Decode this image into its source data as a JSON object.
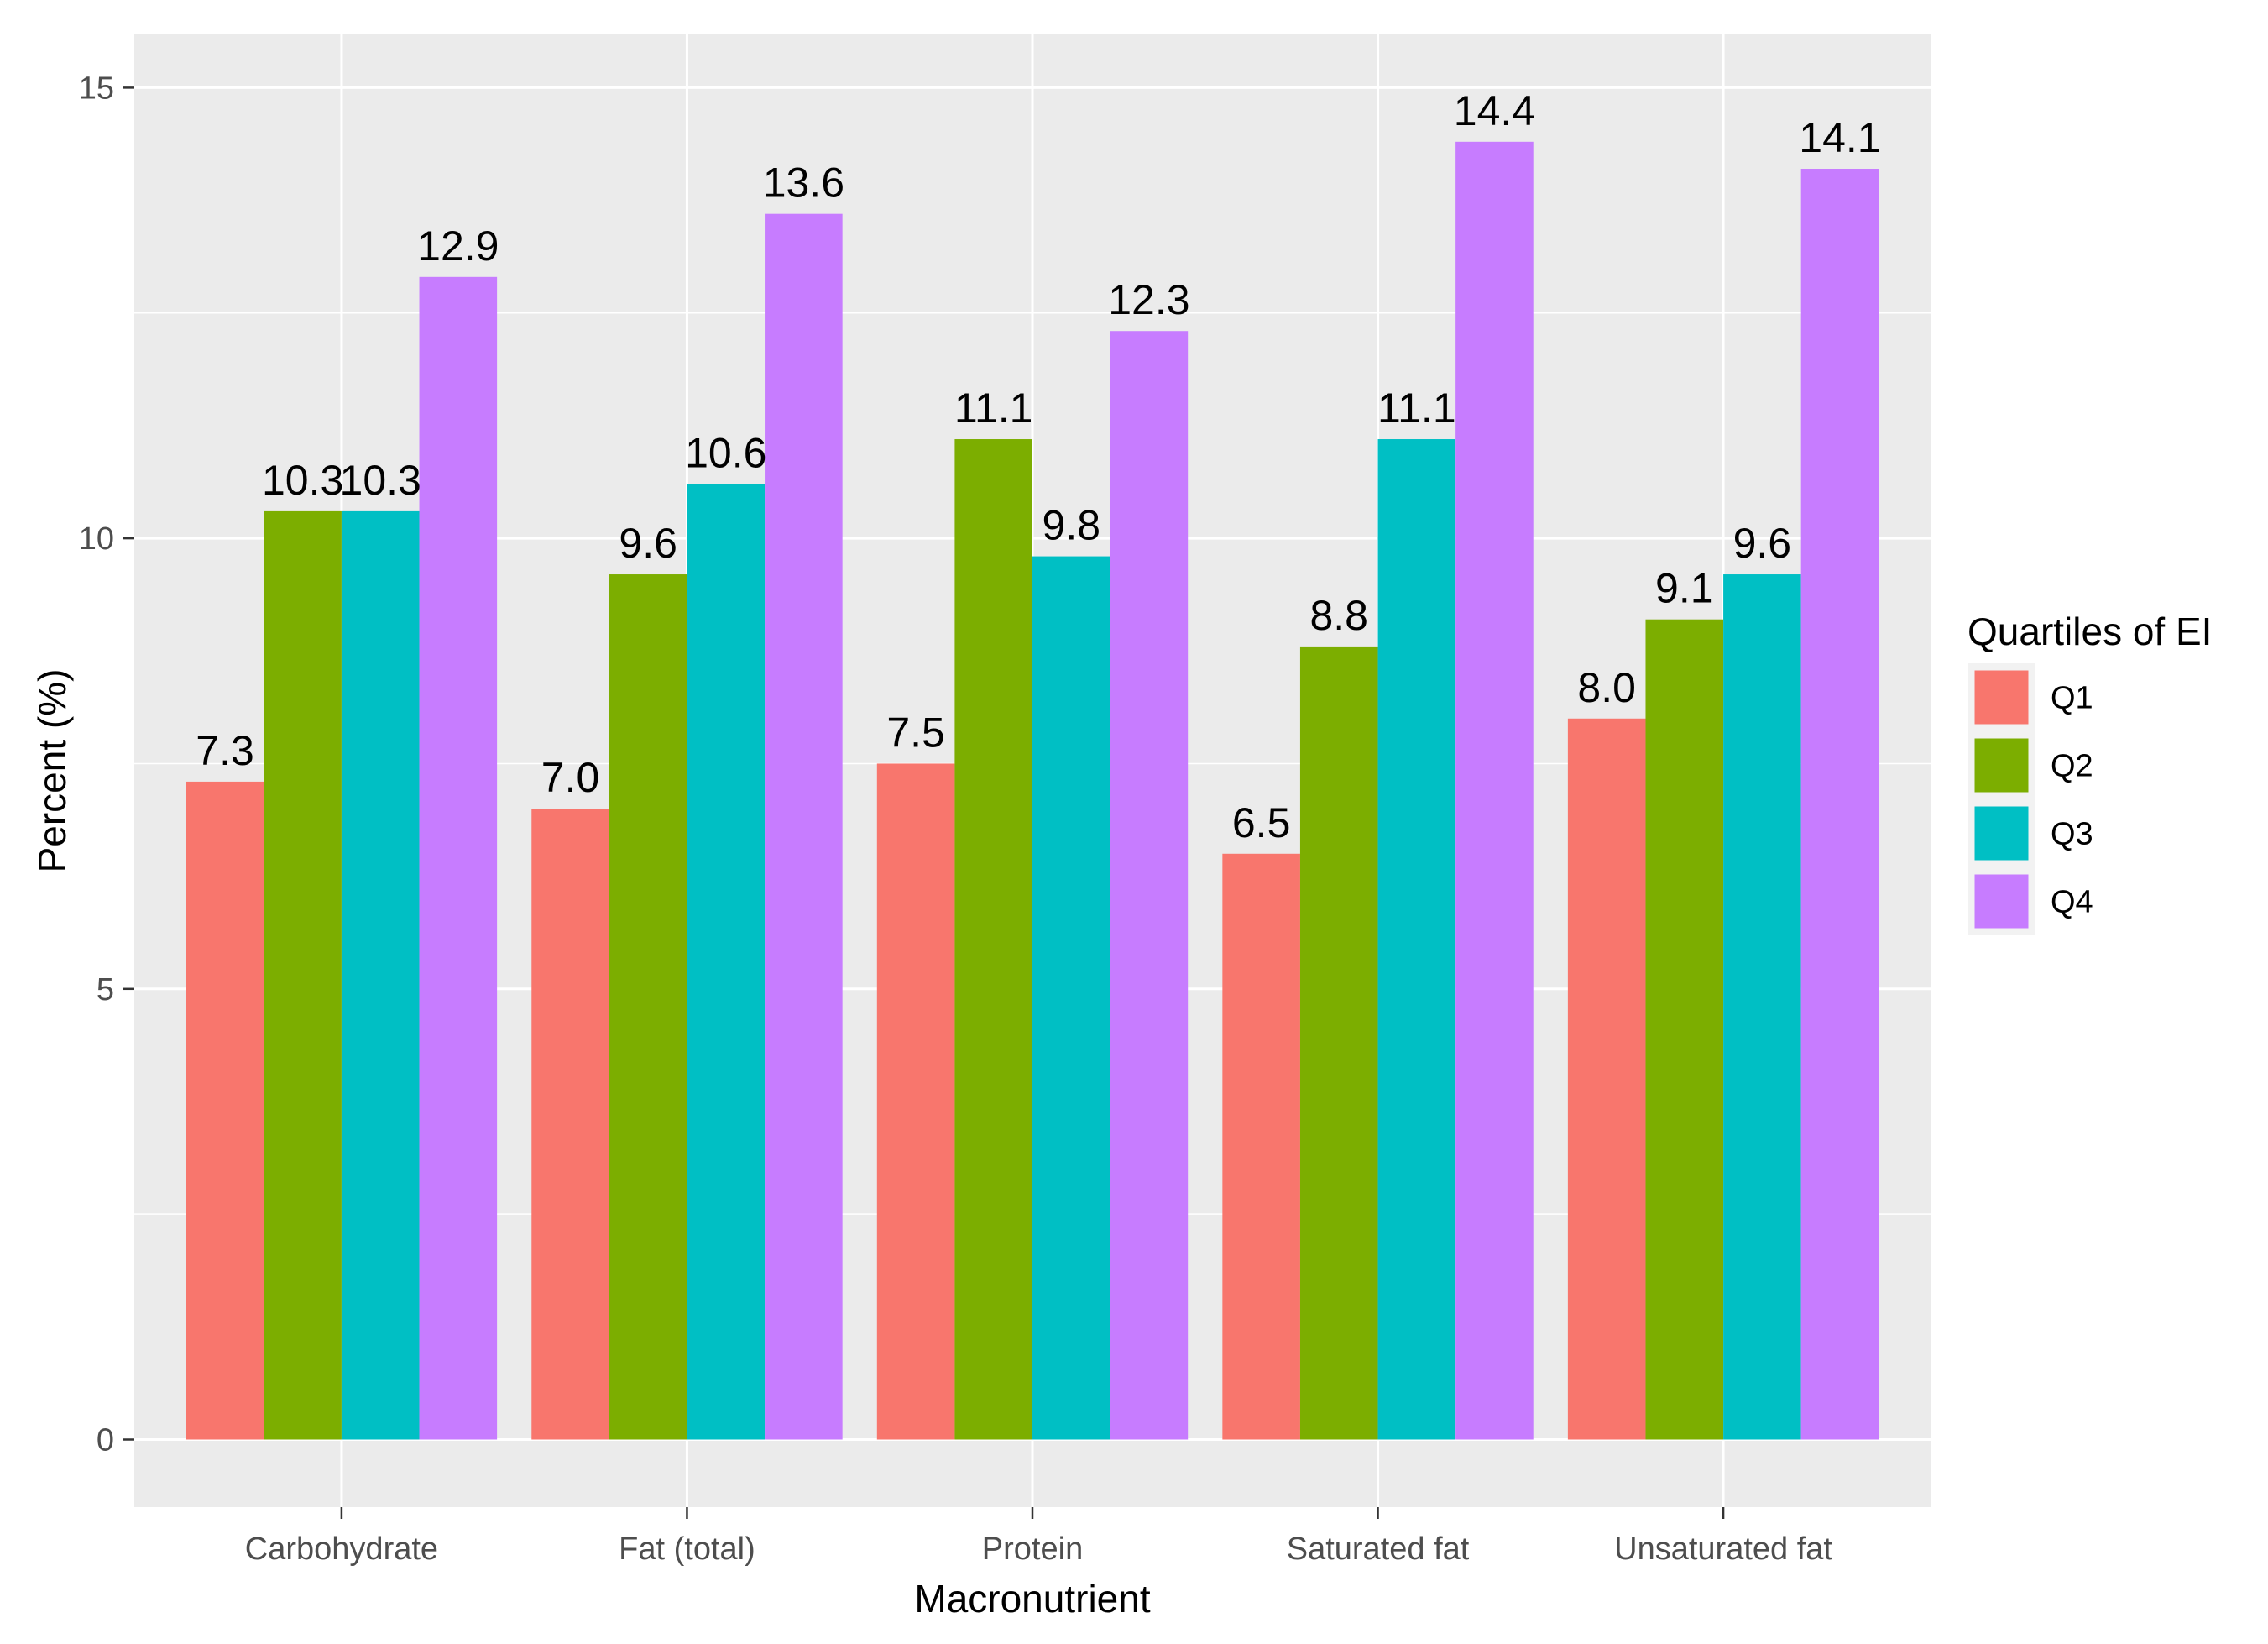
{
  "chart_data": {
    "type": "bar",
    "categories": [
      "Carbohydrate",
      "Fat (total)",
      "Protein",
      "Saturated fat",
      "Unsaturated fat"
    ],
    "series": [
      {
        "name": "Q1",
        "color": "#F8766D",
        "values": [
          7.3,
          7.0,
          7.5,
          6.5,
          8.0
        ],
        "labels": [
          "7.3",
          "7.0",
          "7.5",
          "6.5",
          "8.0"
        ]
      },
      {
        "name": "Q2",
        "color": "#7CAE00",
        "values": [
          10.3,
          9.6,
          11.1,
          8.8,
          9.1
        ],
        "labels": [
          "10.3",
          "9.6",
          "11.1",
          "8.8",
          "9.1"
        ]
      },
      {
        "name": "Q3",
        "color": "#00BFC4",
        "values": [
          10.3,
          10.6,
          9.8,
          11.1,
          9.6
        ],
        "labels": [
          "10.3",
          "10.6",
          "9.8",
          "11.1",
          "9.6"
        ]
      },
      {
        "name": "Q4",
        "color": "#C77CFF",
        "values": [
          12.9,
          13.6,
          12.3,
          14.4,
          14.1
        ],
        "labels": [
          "12.9",
          "13.6",
          "12.3",
          "14.4",
          "14.1"
        ]
      }
    ],
    "xlabel": "Macronutrient",
    "ylabel": "Percent (%)",
    "ylim": [
      -0.75,
      15.6
    ],
    "yticks": [
      0,
      5,
      10,
      15
    ],
    "ytick_labels": [
      "0",
      "5",
      "10",
      "15"
    ],
    "grid": true,
    "legend": {
      "title": "Quartiles of EI",
      "position": "right"
    },
    "panel_color": "#EBEBEB",
    "grid_color": "#FFFFFF"
  }
}
